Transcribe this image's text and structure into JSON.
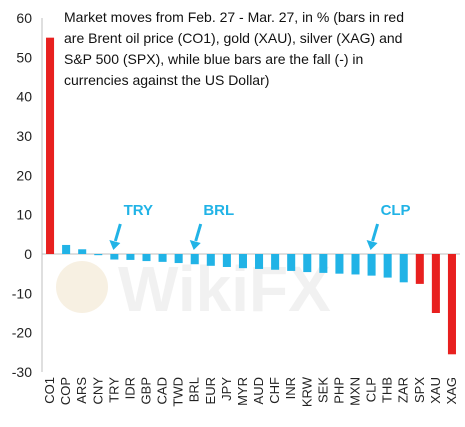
{
  "chart_data": {
    "type": "bar",
    "title_lines": [
      "Market moves from Feb. 27 - Mar. 27, in % (bars in red",
      "are Brent oil price (CO1), gold (XAU), silver (XAG) and",
      "S&P 500 (SPX), while blue bars are the fall (-) in",
      "currencies against the US Dollar)"
    ],
    "categories": [
      "CO1",
      "COP",
      "ARS",
      "CNY",
      "TRY",
      "IDR",
      "GBP",
      "CAD",
      "TWD",
      "BRL",
      "EUR",
      "JPY",
      "MYR",
      "AUD",
      "CHF",
      "INR",
      "KRW",
      "SEK",
      "PHP",
      "MXN",
      "CLP",
      "THB",
      "ZAR",
      "SPX",
      "XAU",
      "XAG"
    ],
    "values": [
      55,
      2.3,
      1.2,
      -0.3,
      -1.4,
      -1.5,
      -1.8,
      -2.0,
      -2.3,
      -2.6,
      -3.0,
      -3.3,
      -3.6,
      -3.8,
      -4.0,
      -4.3,
      -4.6,
      -4.8,
      -5.0,
      -5.2,
      -5.5,
      -6.0,
      -7.2,
      -7.6,
      -15.0,
      -25.5
    ],
    "colors": [
      "#e8201f",
      "#21b3e6",
      "#21b3e6",
      "#21b3e6",
      "#21b3e6",
      "#21b3e6",
      "#21b3e6",
      "#21b3e6",
      "#21b3e6",
      "#21b3e6",
      "#21b3e6",
      "#21b3e6",
      "#21b3e6",
      "#21b3e6",
      "#21b3e6",
      "#21b3e6",
      "#21b3e6",
      "#21b3e6",
      "#21b3e6",
      "#21b3e6",
      "#21b3e6",
      "#21b3e6",
      "#21b3e6",
      "#e8201f",
      "#e8201f",
      "#e8201f"
    ],
    "ylim": [
      -30,
      60
    ],
    "yticks": [
      -30,
      -20,
      -10,
      0,
      10,
      20,
      30,
      40,
      50,
      60
    ],
    "annotations": [
      {
        "label": "TRY",
        "category": "TRY"
      },
      {
        "label": "BRL",
        "category": "BRL"
      },
      {
        "label": "CLP",
        "category": "CLP"
      }
    ],
    "annotation_color": "#21b3e6",
    "grid": false,
    "legend": "none",
    "watermark": "WikiFX"
  }
}
